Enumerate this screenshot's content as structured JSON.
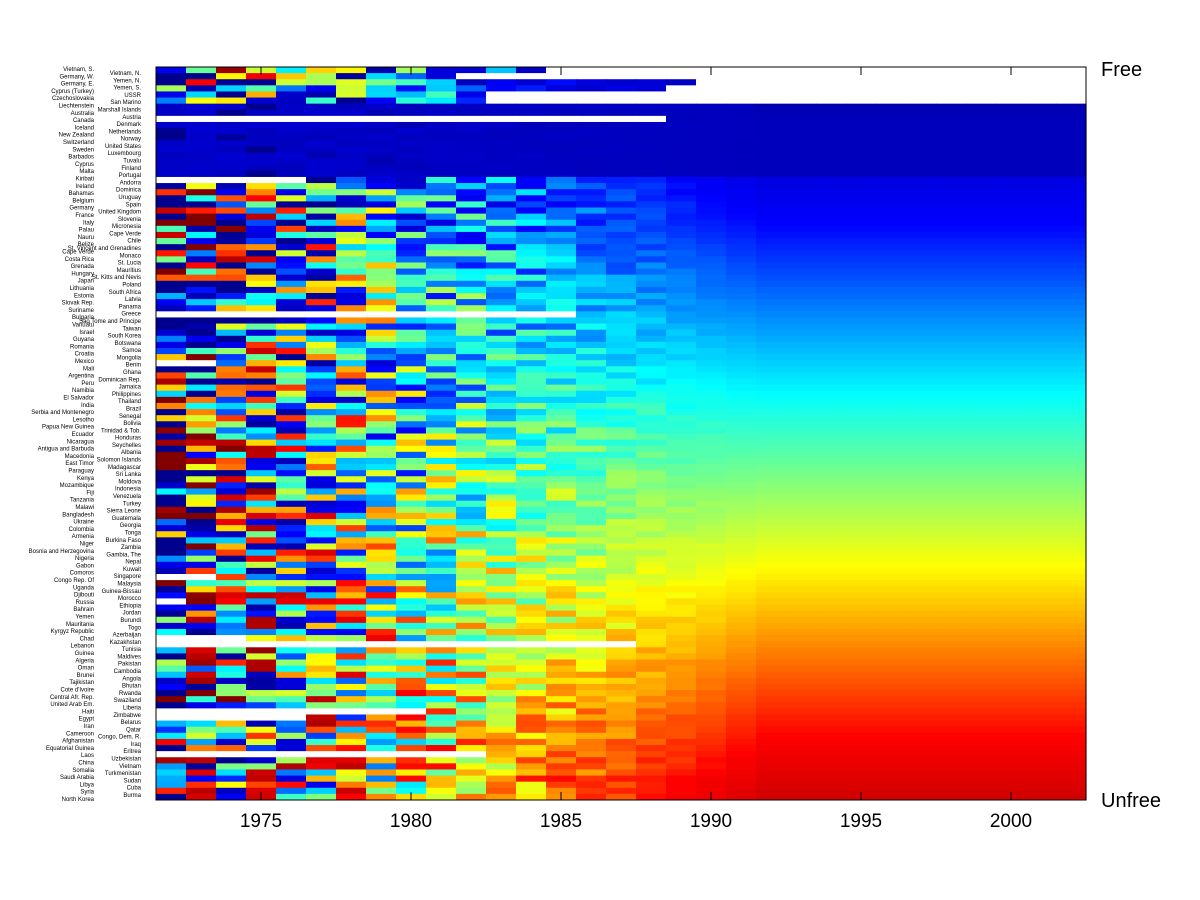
{
  "chart_data": {
    "type": "heatmap",
    "title": "",
    "xlabel": "",
    "ylabel": "",
    "xlim": [
      1971.5,
      2002.5
    ],
    "x_ticks": [
      1975,
      1980,
      1985,
      1990,
      1995,
      2000
    ],
    "x_tick_labels": [
      "1975",
      "1980",
      "1985",
      "1990",
      "1995",
      "2000"
    ],
    "top_label": "Free",
    "bottom_label": "Unfree",
    "colormap": "jet",
    "grid": false,
    "countries_left": [
      "Vietnam, S.",
      "Germany, W.",
      "Germany, E.",
      "Cyprus (Turkey)",
      "Czechoslovakia",
      "Liechtenstein",
      "Australia",
      "Canada",
      "Iceland",
      "New Zealand",
      "Switzerland",
      "Sweden",
      "Barbados",
      "Cyprus",
      "Malta",
      "Kiribati",
      "Ireland",
      "Bahamas",
      "Belgium",
      "Germany",
      "France",
      "Italy",
      "Palau",
      "Nauru",
      "Belize",
      "Cape Verde",
      "Costa Rica",
      "Grenada",
      "Hungary",
      "Japan",
      "Lithuania",
      "Estonia",
      "Slovak Rep.",
      "Suriname",
      "Bulgaria",
      "Vanuatu",
      "Israel",
      "Guyana",
      "Romania",
      "Croatia",
      "Mexico",
      "Mali",
      "Argentina",
      "Peru",
      "Namibia",
      "El Salvador",
      "India",
      "Serbia and Montenegro",
      "Lesotho",
      "Papua New Guinea",
      "Ecuador",
      "Nicaragua",
      "Antigua and Barbuda",
      "Macedonia",
      "East Timor",
      "Paraguay",
      "Kenya",
      "Mozambique",
      "Fiji",
      "Tanzania",
      "Malawi",
      "Bangladesh",
      "Ukraine",
      "Colombia",
      "Armenia",
      "Niger",
      "Bosnia and Herzegovina",
      "Nigeria",
      "Gabon",
      "Comoros",
      "Congo Rep. Of",
      "Uganda",
      "Djibouti",
      "Russia",
      "Bahrain",
      "Yemen",
      "Mauritania",
      "Kyrgyz Republic",
      "Chad",
      "Lebanon",
      "Guinea",
      "Algeria",
      "Oman",
      "Brunei",
      "Tajikistan",
      "Cote d'Ivoire",
      "Central Afr. Rep.",
      "United Arab Em.",
      "Haiti",
      "Egypt",
      "Iran",
      "Cameroon",
      "Afghanistan",
      "Equatorial Guinea",
      "Laos",
      "China",
      "Somalia",
      "Saudi Arabia",
      "Libya",
      "Syria",
      "North Korea"
    ],
    "countries_right": [
      "Vietnam, N.",
      "Yemen, N.",
      "Yemen, S.",
      "USSR",
      "San Marino",
      "Marshall Islands",
      "Austria",
      "Denmark",
      "Netherlands",
      "Norway",
      "United States",
      "Luxembourg",
      "Tuvalu",
      "Finland",
      "Portugal",
      "Andorra",
      "Dominica",
      "Uruguay",
      "Spain",
      "United Kingdom",
      "Slovenia",
      "Micronesia",
      "Cape Verde",
      "Chile",
      "St. Vincent and Grenadines",
      "Monaco",
      "St. Lucia",
      "Mauritius",
      "St. Kitts and Nevis",
      "Poland",
      "South Africa",
      "Latvia",
      "Panama",
      "Greece",
      "Sao Tome and Principe",
      "Taiwan",
      "South Korea",
      "Botswana",
      "Samoa",
      "Mongolia",
      "Benin",
      "Ghana",
      "Dominican Rep.",
      "Jamaica",
      "Philippines",
      "Thailand",
      "Brazil",
      "Senegal",
      "Bolivia",
      "Trinidad & Tob.",
      "Honduras",
      "Seychelles",
      "Albania",
      "Solomon Islands",
      "Madagascar",
      "Sri Lanka",
      "Moldova",
      "Indonesia",
      "Venezuela",
      "Turkey",
      "Sierra Leone",
      "Guatemala",
      "Georgia",
      "Tonga",
      "Burkina Faso",
      "Zambia",
      "Gambia, The",
      "Nepal",
      "Kuwait",
      "Singapore",
      "Malaysia",
      "Guinea-Bissau",
      "Morocco",
      "Ethiopia",
      "Jordan",
      "Burundi",
      "Togo",
      "Azerbaijan",
      "Kazakhstan",
      "Tunisia",
      "Maldives",
      "Pakistan",
      "Cambodia",
      "Angola",
      "Bhutan",
      "Rwanda",
      "Swaziland",
      "Liberia",
      "Zimbabwe",
      "Belarus",
      "Qatar",
      "Congo, Dem. R.",
      "Iraq",
      "Eritrea",
      "Uzbekistan",
      "Vietnam",
      "Turkmenistan",
      "Sudan",
      "Cuba",
      "Burma"
    ]
  },
  "colors": {
    "jet_stops": [
      "#00008f",
      "#0000ff",
      "#00ffff",
      "#ffff00",
      "#ff0000",
      "#800000"
    ],
    "missing": "#ffffff",
    "axis": "#000000"
  }
}
